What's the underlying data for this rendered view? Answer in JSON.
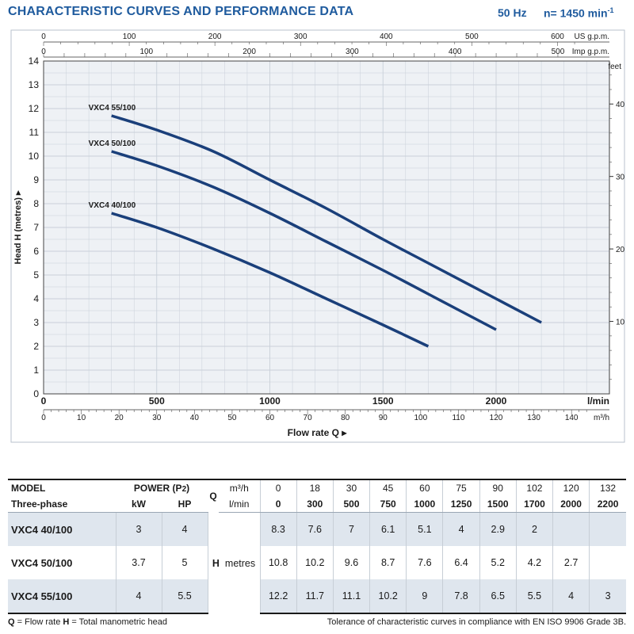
{
  "header": {
    "title": "CHARACTERISTIC CURVES AND PERFORMANCE DATA",
    "frequency": "50 Hz",
    "speed_prefix": "n= 1450 min",
    "speed_exp": "-1"
  },
  "chart_data": {
    "type": "line",
    "xlabel": "Flow rate  Q",
    "ylabel": "Head H  (metres)",
    "x_unit": "l/min",
    "xlim": [
      0,
      2500
    ],
    "ylim": [
      0,
      14
    ],
    "y_ticks": [
      0,
      1,
      2,
      3,
      4,
      5,
      6,
      7,
      8,
      9,
      10,
      11,
      12,
      13,
      14
    ],
    "x_ticks_lmin": [
      0,
      500,
      1000,
      1500,
      2000
    ],
    "secondary_y": {
      "unit": "feet",
      "ticks": [
        10,
        20,
        30,
        40
      ]
    },
    "secondary_x_m3h": {
      "unit": "m³/h",
      "ticks": [
        0,
        10,
        20,
        30,
        40,
        50,
        60,
        70,
        80,
        90,
        100,
        110,
        120,
        130,
        140
      ]
    },
    "top_axis_usgpm": {
      "unit": "US g.p.m.",
      "ticks": [
        0,
        100,
        200,
        300,
        400,
        500,
        600
      ]
    },
    "top_axis_impgpm": {
      "unit": "Imp g.p.m.",
      "ticks": [
        0,
        100,
        200,
        300,
        400,
        500
      ]
    },
    "grid": true,
    "series": [
      {
        "name": "VXC4 55/100",
        "x": [
          300,
          500,
          750,
          1000,
          1250,
          1500,
          1700,
          2000,
          2200
        ],
        "y": [
          11.7,
          11.1,
          10.2,
          9,
          7.8,
          6.5,
          5.5,
          4,
          3
        ]
      },
      {
        "name": "VXC4 50/100",
        "x": [
          300,
          500,
          750,
          1000,
          1250,
          1500,
          1700,
          2000
        ],
        "y": [
          10.2,
          9.6,
          8.7,
          7.6,
          6.4,
          5.2,
          4.2,
          2.7
        ]
      },
      {
        "name": "VXC4 40/100",
        "x": [
          300,
          500,
          750,
          1000,
          1250,
          1500,
          1700
        ],
        "y": [
          7.6,
          7,
          6.1,
          5.1,
          4,
          2.9,
          2
        ]
      }
    ]
  },
  "table": {
    "model_label": "MODEL",
    "phase_label": "Three-phase",
    "power_label": "POWER (P2)",
    "kw_label": "kW",
    "hp_label": "HP",
    "q_label": "Q",
    "q_unit_m3h": "m³/h",
    "q_unit_lmin": "l/min",
    "h_label": "H",
    "h_unit": "metres",
    "q_m3h": [
      "0",
      "18",
      "30",
      "45",
      "60",
      "75",
      "90",
      "102",
      "120",
      "132"
    ],
    "q_lmin": [
      "0",
      "300",
      "500",
      "750",
      "1000",
      "1250",
      "1500",
      "1700",
      "2000",
      "2200"
    ],
    "rows": [
      {
        "model": "VXC4 40/100",
        "kw": "3",
        "hp": "4",
        "heads": [
          "8.3",
          "7.6",
          "7",
          "6.1",
          "5.1",
          "4",
          "2.9",
          "2",
          "",
          ""
        ]
      },
      {
        "model": "VXC4 50/100",
        "kw": "3.7",
        "hp": "5",
        "heads": [
          "10.8",
          "10.2",
          "9.6",
          "8.7",
          "7.6",
          "6.4",
          "5.2",
          "4.2",
          "2.7",
          ""
        ]
      },
      {
        "model": "VXC4 55/100",
        "kw": "4",
        "hp": "5.5",
        "heads": [
          "12.2",
          "11.7",
          "11.1",
          "10.2",
          "9",
          "7.8",
          "6.5",
          "5.5",
          "4",
          "3"
        ]
      }
    ]
  },
  "footer": {
    "q_abbr": "Q",
    "q_text": " = Flow rate  ",
    "h_abbr": "H",
    "h_text": " = Total manometric head",
    "tolerance": "Tolerance of characteristic curves in compliance with EN ISO 9906 Grade 3B."
  },
  "colors": {
    "curve": "#1a3f7a",
    "title": "#1f5b9e",
    "plot_bg": "#eef1f5",
    "grid": "#c9d0d9",
    "shade": "#dfe6ee"
  }
}
